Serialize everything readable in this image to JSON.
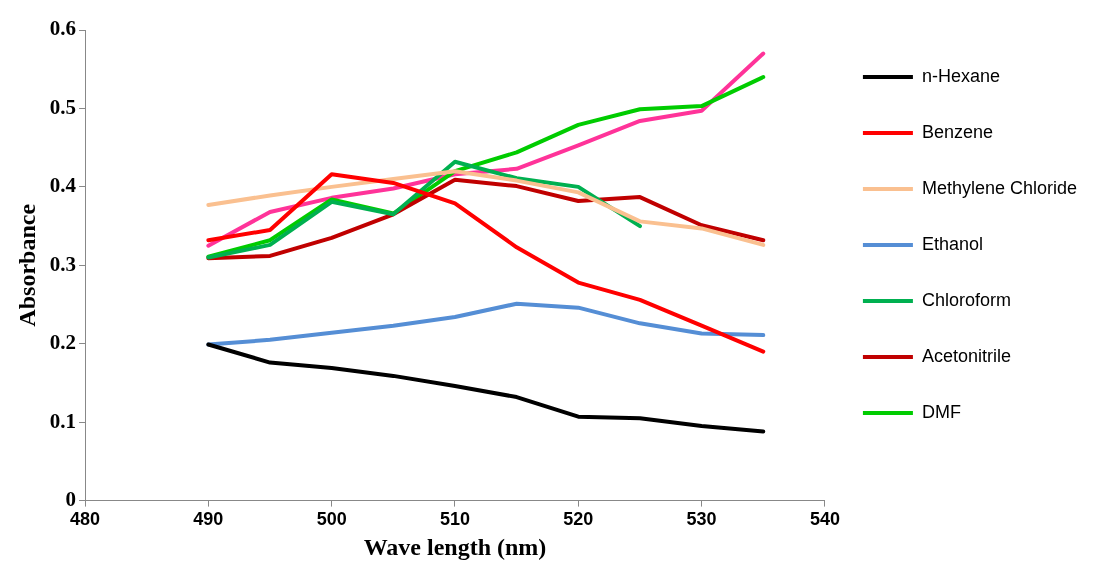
{
  "chart_data": {
    "type": "line",
    "xlabel": "Wave length (nm)",
    "ylabel": "Absorbance",
    "x": [
      490,
      495,
      500,
      505,
      510,
      515,
      520,
      525,
      530,
      535
    ],
    "xlim": [
      480,
      540
    ],
    "xticks": [
      480,
      490,
      500,
      510,
      520,
      530,
      540
    ],
    "ylim": [
      0,
      0.6
    ],
    "yticks": [
      0,
      0.1,
      0.2,
      0.3,
      0.4,
      0.5,
      0.6
    ],
    "grid": false,
    "legend": "right",
    "marker": "none",
    "line_style": "solid",
    "series": [
      {
        "name": "n-Hexane",
        "color": "#000000",
        "values": [
          0.199,
          0.176,
          0.169,
          0.159,
          0.146,
          0.132,
          0.107,
          0.105,
          0.095,
          0.088
        ]
      },
      {
        "name": "Benzene",
        "color": "#ff0000",
        "values": [
          0.332,
          0.345,
          0.416,
          0.405,
          0.379,
          0.323,
          0.278,
          0.256,
          0.223,
          0.19
        ]
      },
      {
        "name": "Methylene Chloride",
        "color": "#fac090",
        "values": [
          0.377,
          0.389,
          0.4,
          0.41,
          0.42,
          0.408,
          0.393,
          0.356,
          0.347,
          0.326
        ]
      },
      {
        "name": "Ethanol",
        "color": "#558ed5",
        "values": [
          0.199,
          0.205,
          0.214,
          0.223,
          0.234,
          0.251,
          0.246,
          0.226,
          0.213,
          0.211
        ]
      },
      {
        "name": "Chloroform",
        "color": "#00b050",
        "values": [
          0.31,
          0.326,
          0.381,
          0.365,
          0.432,
          0.411,
          0.4,
          0.35,
          null,
          null
        ]
      },
      {
        "name": "Acetonitrile",
        "color": "#c00000",
        "values": [
          0.309,
          0.312,
          0.335,
          0.365,
          0.409,
          0.401,
          0.382,
          0.387,
          0.351,
          0.332
        ]
      },
      {
        "name": "DMF",
        "color": "#00cc00",
        "values": [
          0.311,
          0.332,
          0.384,
          0.366,
          0.42,
          0.444,
          0.479,
          0.499,
          0.503,
          0.54
        ]
      },
      {
        "color": "#ff3399",
        "values": [
          0.325,
          0.368,
          0.386,
          0.398,
          0.416,
          0.423,
          0.453,
          0.484,
          0.497,
          0.57
        ]
      }
    ]
  }
}
